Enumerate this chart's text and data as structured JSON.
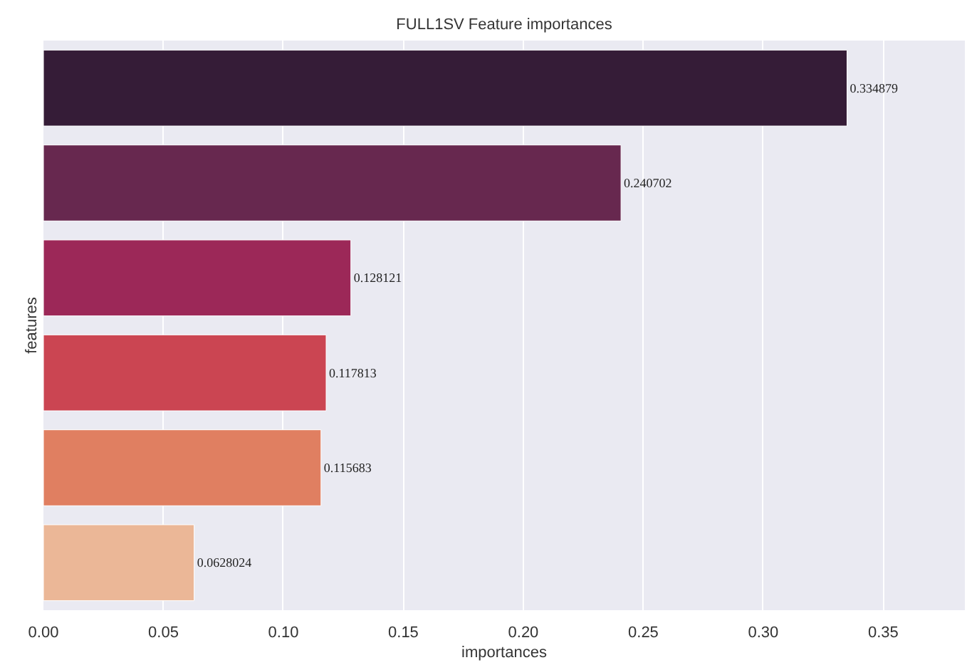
{
  "chart_data": {
    "type": "bar",
    "orientation": "horizontal",
    "title": "FULL1SV Feature importances",
    "xlabel": "importances",
    "ylabel": "features",
    "categories": [
      null,
      null,
      null,
      null,
      null,
      null
    ],
    "values": [
      0.334879,
      0.240702,
      0.128121,
      0.117813,
      0.115683,
      0.0628024
    ],
    "colors": [
      "#351c37",
      "#67284f",
      "#9c2858",
      "#cb4552",
      "#e07f61",
      "#ebb797"
    ],
    "data_labels": true,
    "xlim": [
      0,
      0.384
    ],
    "xticks": [
      {
        "value": 0,
        "label": "0.00"
      },
      {
        "value": 0.05,
        "label": "0.05"
      },
      {
        "value": 0.1,
        "label": "0.10"
      },
      {
        "value": 0.15,
        "label": "0.15"
      },
      {
        "value": 0.2,
        "label": "0.20"
      },
      {
        "value": 0.25,
        "label": "0.25"
      },
      {
        "value": 0.3,
        "label": "0.30"
      },
      {
        "value": 0.35,
        "label": "0.35"
      }
    ],
    "grid": "x"
  }
}
